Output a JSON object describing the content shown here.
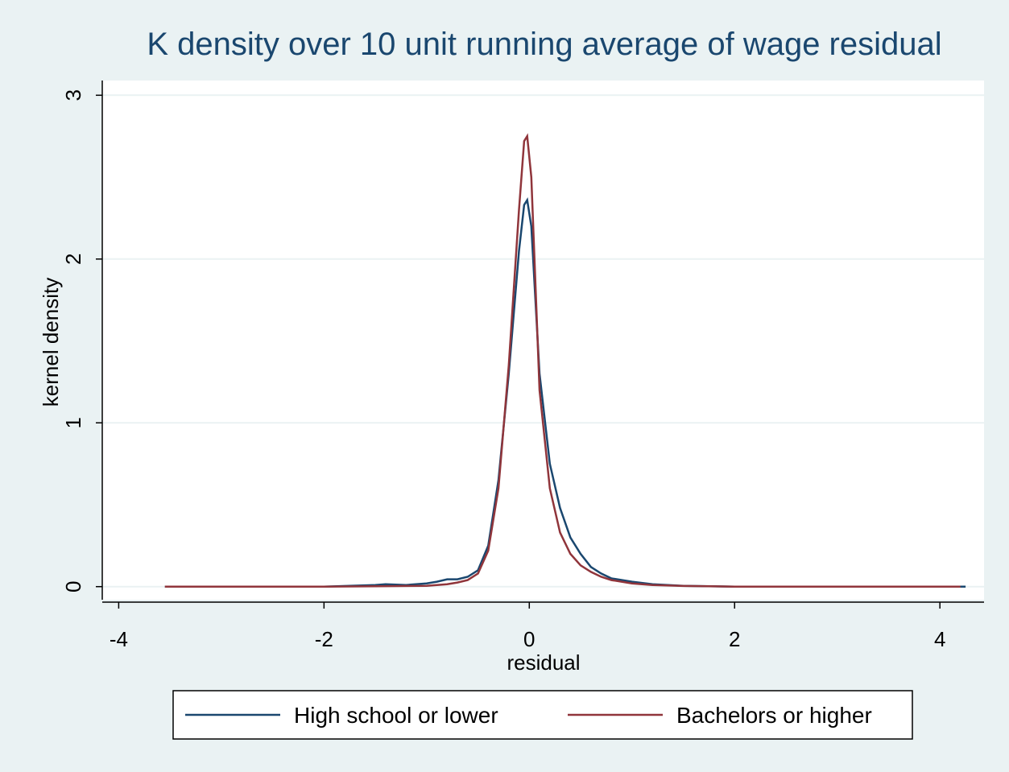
{
  "chart_data": {
    "type": "line",
    "title": "K density over 10 unit running average of wage residual",
    "x_label": "residual",
    "y_label": "kernel density",
    "xlim": [
      -4.16,
      4.43
    ],
    "ylim": [
      -0.08,
      3.09
    ],
    "xticks": [
      -4,
      -2,
      0,
      2,
      4
    ],
    "yticks": [
      0,
      1,
      2,
      3
    ],
    "grid": true,
    "legend": "bottom",
    "series": [
      {
        "name": "High school or lower",
        "color": "#1a476f",
        "x": [
          -3.55,
          -3,
          -2,
          -1.5,
          -1.4,
          -1.2,
          -1.0,
          -0.9,
          -0.8,
          -0.7,
          -0.6,
          -0.5,
          -0.4,
          -0.3,
          -0.2,
          -0.1,
          -0.05,
          -0.02,
          0.02,
          0.1,
          0.2,
          0.3,
          0.4,
          0.5,
          0.6,
          0.7,
          0.8,
          1.0,
          1.2,
          1.5,
          2,
          3,
          4,
          4.25
        ],
        "values": [
          0,
          0,
          0,
          0.01,
          0.015,
          0.01,
          0.02,
          0.03,
          0.045,
          0.045,
          0.06,
          0.1,
          0.25,
          0.65,
          1.3,
          2.05,
          2.33,
          2.36,
          2.2,
          1.3,
          0.75,
          0.48,
          0.3,
          0.2,
          0.12,
          0.08,
          0.05,
          0.03,
          0.015,
          0.005,
          0,
          0,
          0,
          0
        ]
      },
      {
        "name": "Bachelors or higher",
        "color": "#90353b",
        "x": [
          -3.55,
          -3,
          -2,
          -1.5,
          -1.0,
          -0.8,
          -0.7,
          -0.6,
          -0.5,
          -0.4,
          -0.3,
          -0.2,
          -0.1,
          -0.05,
          -0.02,
          0.02,
          0.1,
          0.2,
          0.3,
          0.4,
          0.5,
          0.6,
          0.7,
          0.8,
          1.0,
          1.2,
          1.5,
          2,
          3,
          4,
          4.2
        ],
        "values": [
          0,
          0,
          0,
          0.002,
          0.005,
          0.015,
          0.025,
          0.04,
          0.08,
          0.22,
          0.6,
          1.35,
          2.3,
          2.72,
          2.75,
          2.5,
          1.2,
          0.6,
          0.33,
          0.2,
          0.13,
          0.09,
          0.06,
          0.04,
          0.02,
          0.01,
          0.004,
          0,
          0,
          0,
          0
        ]
      }
    ]
  }
}
